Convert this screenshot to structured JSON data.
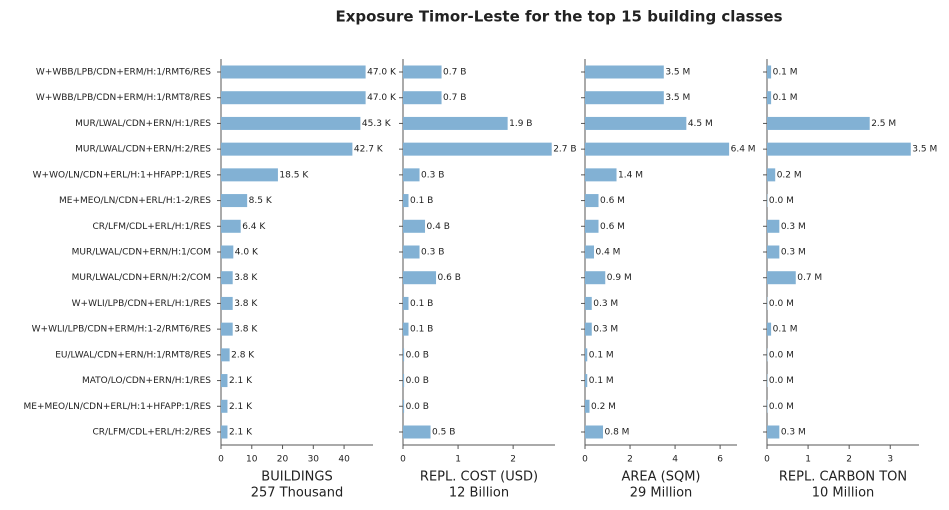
{
  "title": "Exposure Timor-Leste for the top 15 building classes",
  "chart_data": [
    {
      "type": "barh",
      "xlabel": "BUILDINGS",
      "xlabel_total": "257 Thousand",
      "color": "#82b1d4",
      "categories": [
        "W+WBB/LPB/CDN+ERM/H:1/RMT6/RES",
        "W+WBB/LPB/CDN+ERM/H:1/RMT8/RES",
        "MUR/LWAL/CDN+ERN/H:1/RES",
        "MUR/LWAL/CDN+ERN/H:2/RES",
        "W+WO/LN/CDN+ERL/H:1+HFAPP:1/RES",
        "ME+MEO/LN/CDN+ERL/H:1-2/RES",
        "CR/LFM/CDL+ERL/H:1/RES",
        "MUR/LWAL/CDN+ERN/H:1/COM",
        "MUR/LWAL/CDN+ERN/H:2/COM",
        "W+WLI/LPB/CDN+ERL/H:1/RES",
        "W+WLI/LPB/CDN+ERM/H:1-2/RMT6/RES",
        "EU/LWAL/CDN+ERN/H:1/RMT8/RES",
        "MATO/LO/CDN+ERN/H:1/RES",
        "ME+MEO/LN/CDN+ERL/H:1+HFAPP:1/RES",
        "CR/LFM/CDL+ERL/H:2/RES"
      ],
      "values": [
        47.0,
        47.0,
        45.3,
        42.7,
        18.5,
        8.5,
        6.4,
        4.0,
        3.8,
        3.8,
        3.8,
        2.8,
        2.1,
        2.1,
        2.1
      ],
      "value_labels": [
        "47.0 K",
        "47.0 K",
        "45.3 K",
        "42.7 K",
        "18.5 K",
        "8.5 K",
        "6.4 K",
        "4.0 K",
        "3.8 K",
        "3.8 K",
        "3.8 K",
        "2.8 K",
        "2.1 K",
        "2.1 K",
        "2.1 K"
      ],
      "xlim": [
        0,
        49.4
      ],
      "xticks": [
        0,
        10,
        20,
        30,
        40
      ]
    },
    {
      "type": "barh",
      "xlabel": "REPL. COST (USD)",
      "xlabel_total": "12 Billion",
      "color": "#82b1d4",
      "values": [
        0.7,
        0.7,
        1.9,
        2.7,
        0.3,
        0.1,
        0.4,
        0.3,
        0.6,
        0.1,
        0.1,
        0.02,
        0.02,
        0.02,
        0.5
      ],
      "value_labels": [
        "0.7 B",
        "0.7 B",
        "1.9 B",
        "2.7 B",
        "0.3 B",
        "0.1 B",
        "0.4 B",
        "0.3 B",
        "0.6 B",
        "0.1 B",
        "0.1 B",
        "0.0 B",
        "0.0 B",
        "0.0 B",
        "0.5 B"
      ],
      "xlim": [
        0,
        2.76
      ],
      "xticks": [
        0,
        1,
        2
      ]
    },
    {
      "type": "barh",
      "xlabel": "AREA (SQM)",
      "xlabel_total": "29 Million",
      "color": "#82b1d4",
      "values": [
        3.5,
        3.5,
        4.5,
        6.4,
        1.4,
        0.6,
        0.6,
        0.4,
        0.9,
        0.3,
        0.3,
        0.1,
        0.1,
        0.2,
        0.8
      ],
      "value_labels": [
        "3.5 M",
        "3.5 M",
        "4.5 M",
        "6.4 M",
        "1.4 M",
        "0.6 M",
        "0.6 M",
        "0.4 M",
        "0.9 M",
        "0.3 M",
        "0.3 M",
        "0.1 M",
        "0.1 M",
        "0.2 M",
        "0.8 M"
      ],
      "xlim": [
        0,
        6.75
      ],
      "xticks": [
        0,
        2,
        4,
        6
      ]
    },
    {
      "type": "barh",
      "xlabel": "REPL. CARBON TON",
      "xlabel_total": "10 Million",
      "color": "#82b1d4",
      "values": [
        0.1,
        0.1,
        2.5,
        3.5,
        0.2,
        0.01,
        0.3,
        0.3,
        0.7,
        0.01,
        0.1,
        0.01,
        0.01,
        0.01,
        0.3
      ],
      "value_labels": [
        "0.1 M",
        "0.1 M",
        "2.5 M",
        "3.5 M",
        "0.2 M",
        "0.0 M",
        "0.3 M",
        "0.3 M",
        "0.7 M",
        "0.0 M",
        "0.1 M",
        "0.0 M",
        "0.0 M",
        "0.0 M",
        "0.3 M"
      ],
      "xlim": [
        0,
        3.7
      ],
      "xticks": [
        0,
        1,
        2,
        3
      ]
    }
  ]
}
